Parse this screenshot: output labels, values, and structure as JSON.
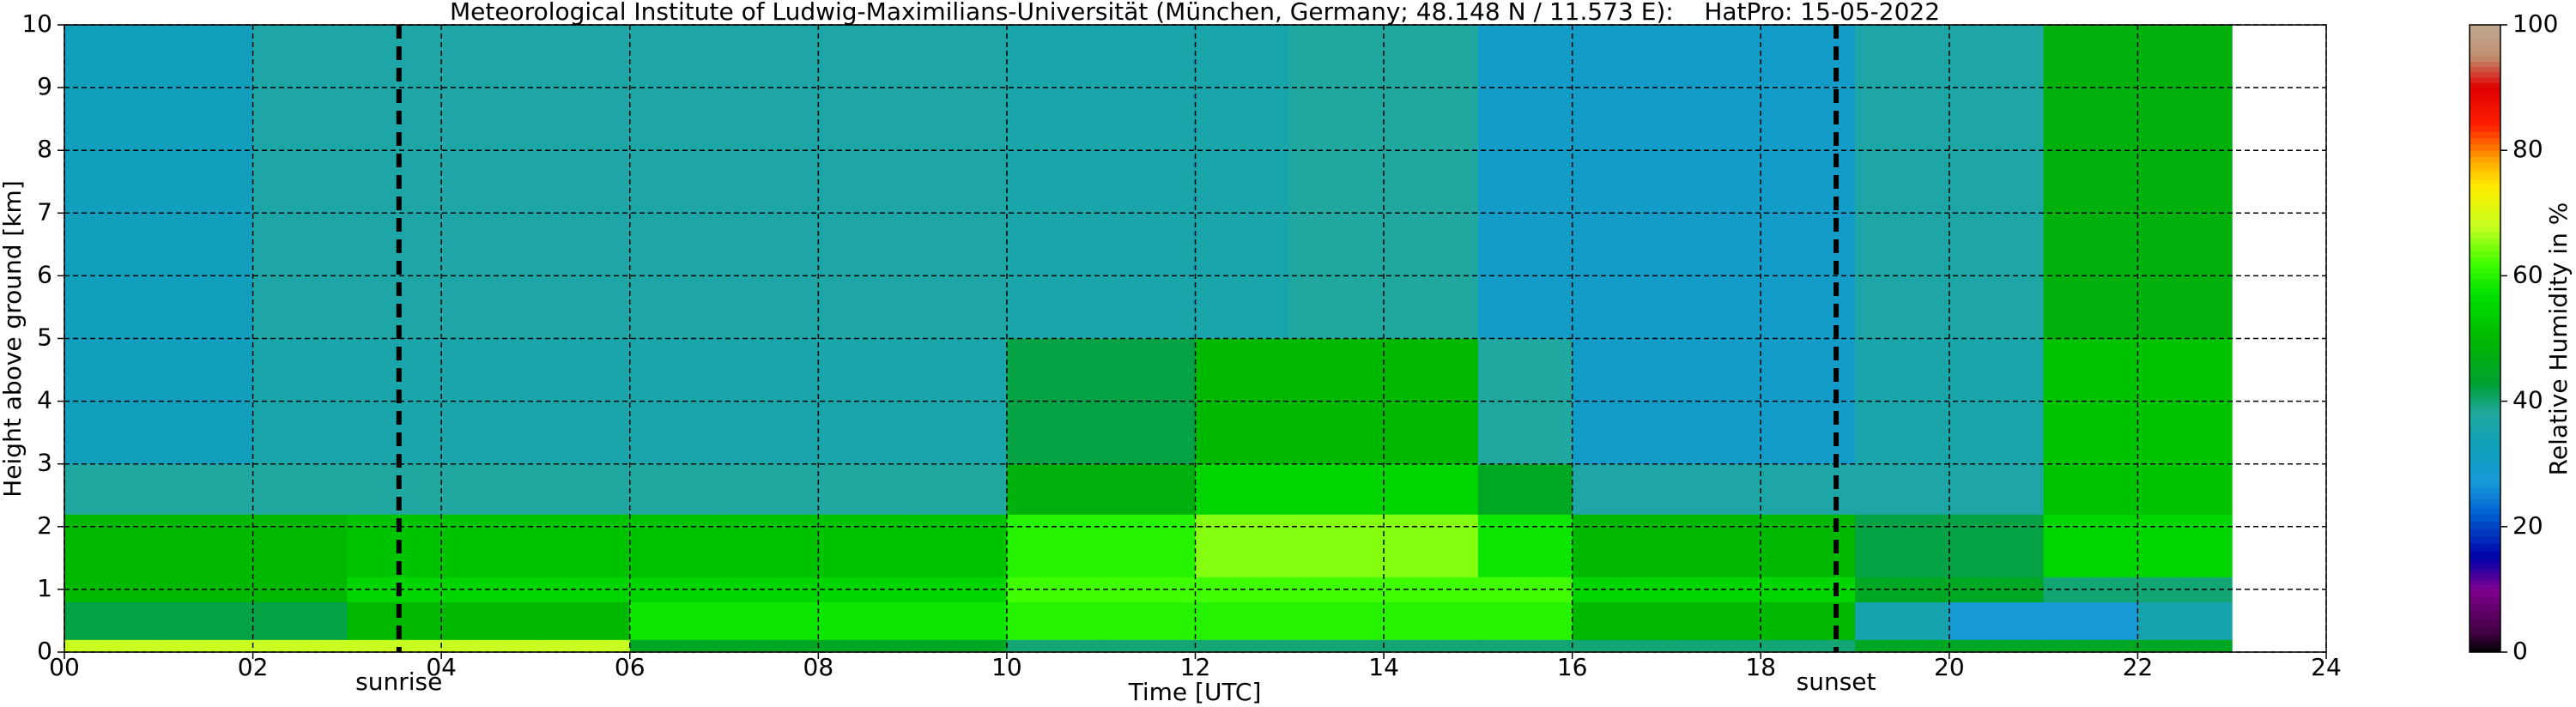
{
  "chart_data": {
    "type": "heatmap",
    "title": "Meteorological Institute of Ludwig-Maximilians-Universität (München, Germany; 48.148 N / 11.573 E):    HatPro: 15-05-2022",
    "xlabel": "Time [UTC]",
    "ylabel": "Height above ground [km]",
    "x_edges": [
      0,
      1,
      2,
      3,
      4,
      5,
      6,
      7,
      8,
      9,
      10,
      11,
      12,
      13,
      14,
      15,
      16,
      17,
      18,
      19,
      20,
      21,
      22,
      23
    ],
    "y_edges": [
      0,
      0.2,
      0.8,
      1.2,
      2.2,
      3,
      5,
      10
    ],
    "z": [
      [
        68,
        68,
        68,
        68,
        68,
        68,
        45,
        45,
        45,
        45,
        40,
        40,
        40,
        40,
        40,
        40,
        40,
        40,
        40,
        45,
        45,
        45,
        45
      ],
      [
        42,
        42,
        42,
        50,
        50,
        50,
        58,
        58,
        58,
        58,
        60,
        60,
        60,
        60,
        60,
        60,
        50,
        50,
        50,
        35,
        28,
        28,
        35
      ],
      [
        50,
        50,
        50,
        55,
        55,
        55,
        55,
        55,
        55,
        55,
        62,
        62,
        62,
        62,
        62,
        62,
        55,
        55,
        55,
        45,
        45,
        40,
        40
      ],
      [
        50,
        50,
        50,
        52,
        52,
        52,
        52,
        52,
        52,
        52,
        60,
        60,
        65,
        65,
        65,
        58,
        50,
        50,
        50,
        42,
        42,
        55,
        55
      ],
      [
        38,
        38,
        38,
        38,
        38,
        38,
        38,
        38,
        38,
        38,
        48,
        48,
        55,
        55,
        55,
        45,
        37,
        37,
        37,
        37,
        37,
        52,
        52
      ],
      [
        32,
        32,
        36,
        36,
        36,
        36,
        36,
        36,
        36,
        36,
        42,
        42,
        50,
        50,
        50,
        38,
        30,
        30,
        30,
        36,
        36,
        52,
        52
      ],
      [
        32,
        32,
        37,
        37,
        37,
        37,
        37,
        37,
        37,
        37,
        36,
        36,
        36,
        38,
        38,
        30,
        30,
        30,
        30,
        37,
        37,
        48,
        48
      ]
    ],
    "xlim": [
      0,
      24
    ],
    "xticks": [
      {
        "value": 0,
        "label": "00"
      },
      {
        "value": 2,
        "label": "02"
      },
      {
        "value": 4,
        "label": "04"
      },
      {
        "value": 6,
        "label": "06"
      },
      {
        "value": 8,
        "label": "08"
      },
      {
        "value": 10,
        "label": "10"
      },
      {
        "value": 12,
        "label": "12"
      },
      {
        "value": 14,
        "label": "14"
      },
      {
        "value": 16,
        "label": "16"
      },
      {
        "value": 18,
        "label": "18"
      },
      {
        "value": 20,
        "label": "20"
      },
      {
        "value": 22,
        "label": "22"
      },
      {
        "value": 24,
        "label": "24"
      }
    ],
    "ylim": [
      0,
      10
    ],
    "yticks": [
      0,
      1,
      2,
      3,
      4,
      5,
      6,
      7,
      8,
      9,
      10
    ],
    "grid": true,
    "events": [
      {
        "label": "sunrise",
        "x": 3.55
      },
      {
        "label": "sunset",
        "x": 18.8
      }
    ],
    "colorbar": {
      "label": "Relative Humidity in %",
      "lim": [
        0,
        100
      ],
      "ticks": [
        0,
        20,
        40,
        60,
        80,
        100
      ],
      "colorscale": [
        {
          "value": 0,
          "color": "#000000"
        },
        {
          "value": 3,
          "color": "#400040"
        },
        {
          "value": 10,
          "color": "#800090"
        },
        {
          "value": 15,
          "color": "#0000a8"
        },
        {
          "value": 22,
          "color": "#0060d0"
        },
        {
          "value": 27,
          "color": "#1898d8"
        },
        {
          "value": 33,
          "color": "#10a0b8"
        },
        {
          "value": 38,
          "color": "#20a8a0"
        },
        {
          "value": 43,
          "color": "#00a030"
        },
        {
          "value": 50,
          "color": "#00b800"
        },
        {
          "value": 57,
          "color": "#00e000"
        },
        {
          "value": 62,
          "color": "#40ff00"
        },
        {
          "value": 68,
          "color": "#c8ff20"
        },
        {
          "value": 74,
          "color": "#ffee00"
        },
        {
          "value": 78,
          "color": "#ffb000"
        },
        {
          "value": 84,
          "color": "#ff2000"
        },
        {
          "value": 90,
          "color": "#e00000"
        },
        {
          "value": 95,
          "color": "#c09070"
        },
        {
          "value": 100,
          "color": "#c0a890"
        }
      ]
    }
  }
}
